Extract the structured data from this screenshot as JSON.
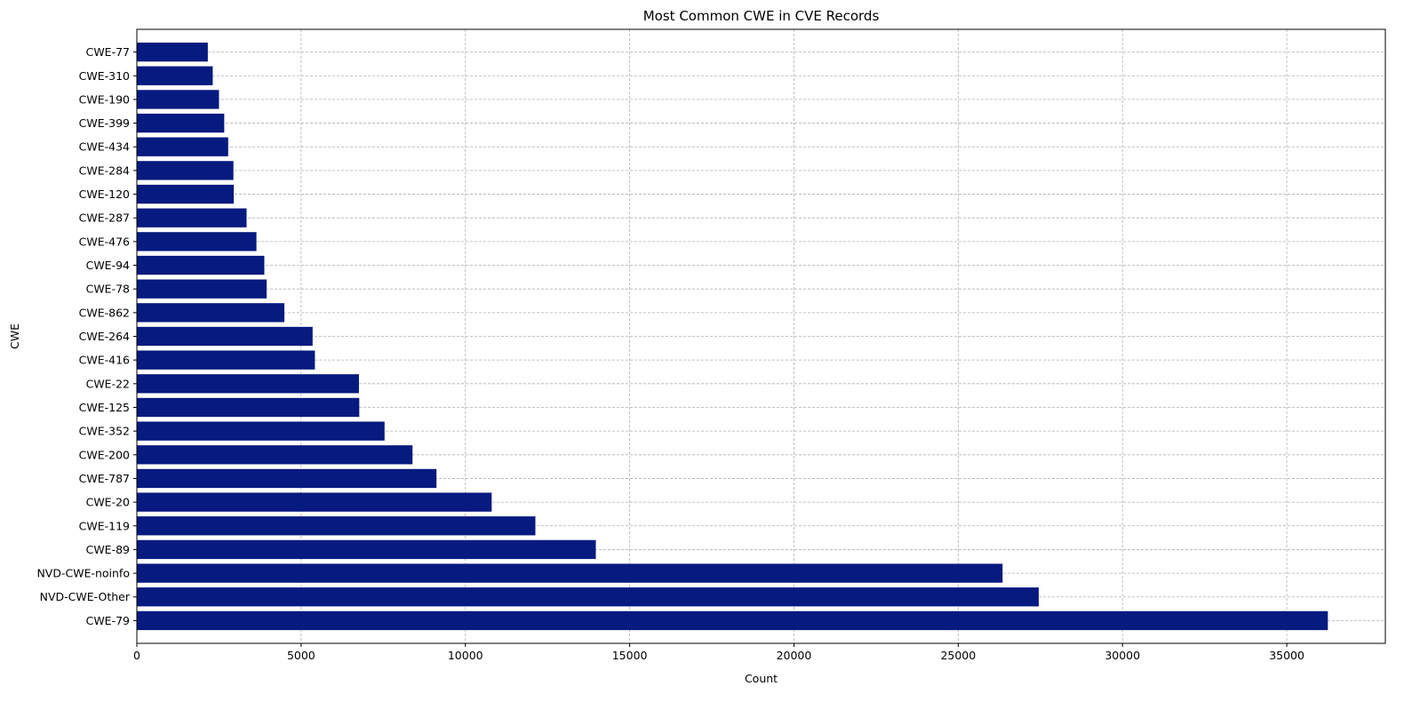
{
  "chart_data": {
    "type": "bar",
    "orientation": "horizontal",
    "title": "Most Common CWE in CVE Records",
    "xlabel": "Count",
    "ylabel": "CWE",
    "xlim": [
      0,
      38000
    ],
    "xticks": [
      0,
      5000,
      10000,
      15000,
      20000,
      25000,
      30000,
      35000
    ],
    "grid": true,
    "bar_color": "#061a80",
    "categories": [
      "CWE-79",
      "NVD-CWE-Other",
      "NVD-CWE-noinfo",
      "CWE-89",
      "CWE-119",
      "CWE-20",
      "CWE-787",
      "CWE-200",
      "CWE-352",
      "CWE-125",
      "CWE-22",
      "CWE-416",
      "CWE-264",
      "CWE-862",
      "CWE-78",
      "CWE-94",
      "CWE-476",
      "CWE-287",
      "CWE-120",
      "CWE-284",
      "CWE-434",
      "CWE-399",
      "CWE-190",
      "CWE-310",
      "CWE-77"
    ],
    "values": [
      36250,
      27450,
      26350,
      13970,
      12130,
      10800,
      9120,
      8390,
      7540,
      6770,
      6760,
      5420,
      5350,
      4490,
      3950,
      3880,
      3640,
      3340,
      2950,
      2940,
      2780,
      2660,
      2500,
      2310,
      2160
    ]
  }
}
